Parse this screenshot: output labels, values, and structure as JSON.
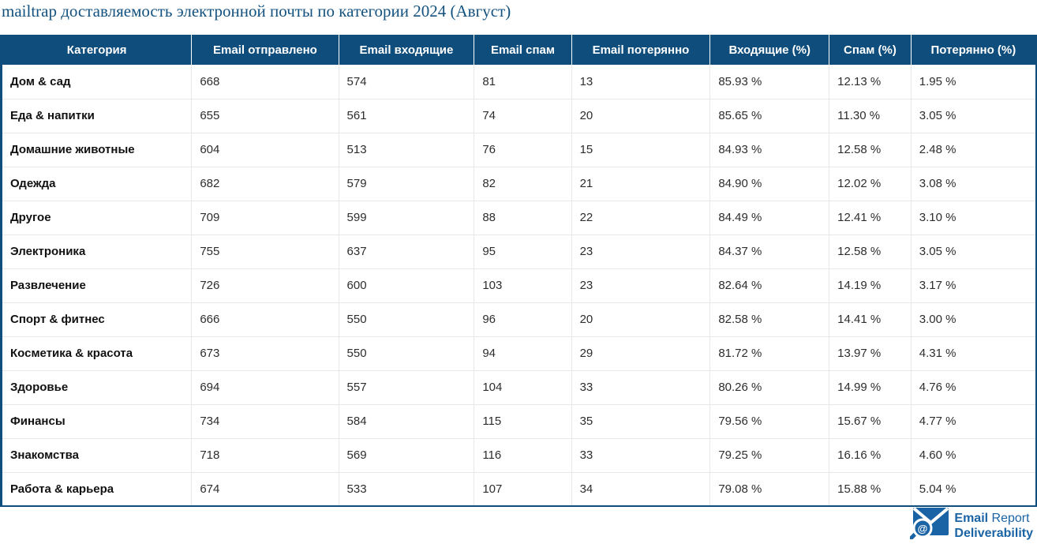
{
  "title": "mailtrap доставляемость электронной почты по категории 2024 (Август)",
  "colors": {
    "header_background": "#0e4d7c",
    "title_text": "#14527f",
    "table_border": "#0e4d7c",
    "row_separator": "#e6e8ea",
    "logo_blue": "#1a63a5"
  },
  "logo": {
    "icon": "envelope-magnifier-at-icon",
    "line1_bold": "Email",
    "line1_regular": " Report",
    "line2_bold": "Deliverability"
  },
  "table": {
    "columns": [
      "Категория",
      "Email отправлено",
      "Email входящие",
      "Email спам",
      "Email потерянно",
      "Входящие (%)",
      "Спам (%)",
      "Потерянно (%)"
    ],
    "rows": [
      [
        "Дом & сад",
        "668",
        "574",
        "81",
        "13",
        "85.93 %",
        "12.13 %",
        "1.95 %"
      ],
      [
        "Еда & напитки",
        "655",
        "561",
        "74",
        "20",
        "85.65 %",
        "11.30 %",
        "3.05 %"
      ],
      [
        "Домашние животные",
        "604",
        "513",
        "76",
        "15",
        "84.93 %",
        "12.58 %",
        "2.48 %"
      ],
      [
        "Одежда",
        "682",
        "579",
        "82",
        "21",
        "84.90 %",
        "12.02 %",
        "3.08 %"
      ],
      [
        "Другое",
        "709",
        "599",
        "88",
        "22",
        "84.49 %",
        "12.41 %",
        "3.10 %"
      ],
      [
        "Электроника",
        "755",
        "637",
        "95",
        "23",
        "84.37 %",
        "12.58 %",
        "3.05 %"
      ],
      [
        "Развлечение",
        "726",
        "600",
        "103",
        "23",
        "82.64 %",
        "14.19 %",
        "3.17 %"
      ],
      [
        "Спорт & фитнес",
        "666",
        "550",
        "96",
        "20",
        "82.58 %",
        "14.41 %",
        "3.00 %"
      ],
      [
        "Косметика & красота",
        "673",
        "550",
        "94",
        "29",
        "81.72 %",
        "13.97 %",
        "4.31 %"
      ],
      [
        "Здоровье",
        "694",
        "557",
        "104",
        "33",
        "80.26 %",
        "14.99 %",
        "4.76 %"
      ],
      [
        "Финансы",
        "734",
        "584",
        "115",
        "35",
        "79.56 %",
        "15.67 %",
        "4.77 %"
      ],
      [
        "Знакомства",
        "718",
        "569",
        "116",
        "33",
        "79.25 %",
        "16.16 %",
        "4.60 %"
      ],
      [
        "Работа & карьера",
        "674",
        "533",
        "107",
        "34",
        "79.08 %",
        "15.88 %",
        "5.04 %"
      ]
    ]
  },
  "chart_data": {
    "type": "table",
    "title": "mailtrap доставляемость электронной почты по категории 2024 (Август)",
    "categories": [
      "Дом & сад",
      "Еда & напитки",
      "Домашние животные",
      "Одежда",
      "Другое",
      "Электроника",
      "Развлечение",
      "Спорт & фитнес",
      "Косметика & красота",
      "Здоровье",
      "Финансы",
      "Знакомства",
      "Работа & карьера"
    ],
    "series": [
      {
        "name": "Email отправлено",
        "values": [
          668,
          655,
          604,
          682,
          709,
          755,
          726,
          666,
          673,
          694,
          734,
          718,
          674
        ]
      },
      {
        "name": "Email входящие",
        "values": [
          574,
          561,
          513,
          579,
          599,
          637,
          600,
          550,
          550,
          557,
          584,
          569,
          533
        ]
      },
      {
        "name": "Email спам",
        "values": [
          81,
          74,
          76,
          82,
          88,
          95,
          103,
          96,
          94,
          104,
          115,
          116,
          107
        ]
      },
      {
        "name": "Email потерянно",
        "values": [
          13,
          20,
          15,
          21,
          22,
          23,
          23,
          20,
          29,
          33,
          35,
          33,
          34
        ]
      },
      {
        "name": "Входящие (%)",
        "values": [
          85.93,
          85.65,
          84.93,
          84.9,
          84.49,
          84.37,
          82.64,
          82.58,
          81.72,
          80.26,
          79.56,
          79.25,
          79.08
        ]
      },
      {
        "name": "Спам (%)",
        "values": [
          12.13,
          11.3,
          12.58,
          12.02,
          12.41,
          12.58,
          14.19,
          14.41,
          13.97,
          14.99,
          15.67,
          16.16,
          15.88
        ]
      },
      {
        "name": "Потерянно (%)",
        "values": [
          1.95,
          3.05,
          2.48,
          3.08,
          3.1,
          3.05,
          3.17,
          3.0,
          4.31,
          4.76,
          4.77,
          4.6,
          5.04
        ]
      }
    ]
  }
}
